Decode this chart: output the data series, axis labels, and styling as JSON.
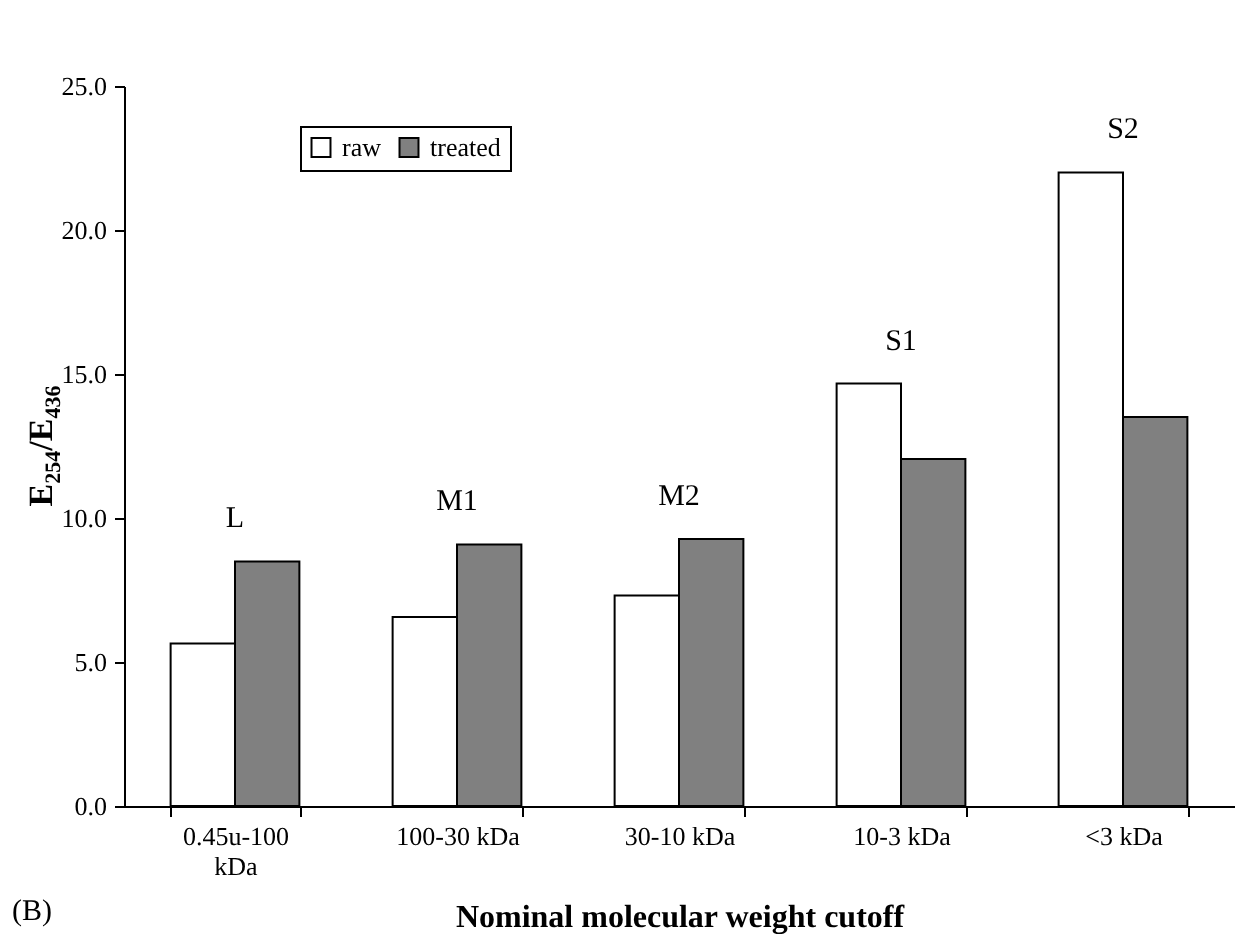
{
  "chart_data": {
    "type": "bar",
    "xlabel": "Nominal molecular weight cutoff",
    "ylabel": "E$_{254}$/E$_{436}$",
    "categories": [
      "0.45u-100 kDa",
      "100-30 kDa",
      "30-10 kDa",
      "10-3 kDa",
      "<3 kDa"
    ],
    "series": [
      {
        "name": "raw",
        "color": "#ffffff",
        "values": [
          5.64,
          6.56,
          7.31,
          14.67,
          22.0
        ]
      },
      {
        "name": "treated",
        "color": "#808080",
        "values": [
          8.49,
          9.08,
          9.27,
          12.05,
          13.51
        ]
      }
    ],
    "ylim": [
      0,
      25
    ],
    "yticks": [
      {
        "value": 0,
        "label": "0.0"
      },
      {
        "value": 5,
        "label": "5.0"
      },
      {
        "value": 10,
        "label": "10.0"
      },
      {
        "value": 15,
        "label": "15.0"
      },
      {
        "value": 20,
        "label": "20.0"
      },
      {
        "value": 25,
        "label": "25.0"
      }
    ],
    "legend": "top left",
    "annotations": [
      "L",
      "M1",
      "M2",
      "S1",
      "S2",
      "(B)"
    ]
  }
}
